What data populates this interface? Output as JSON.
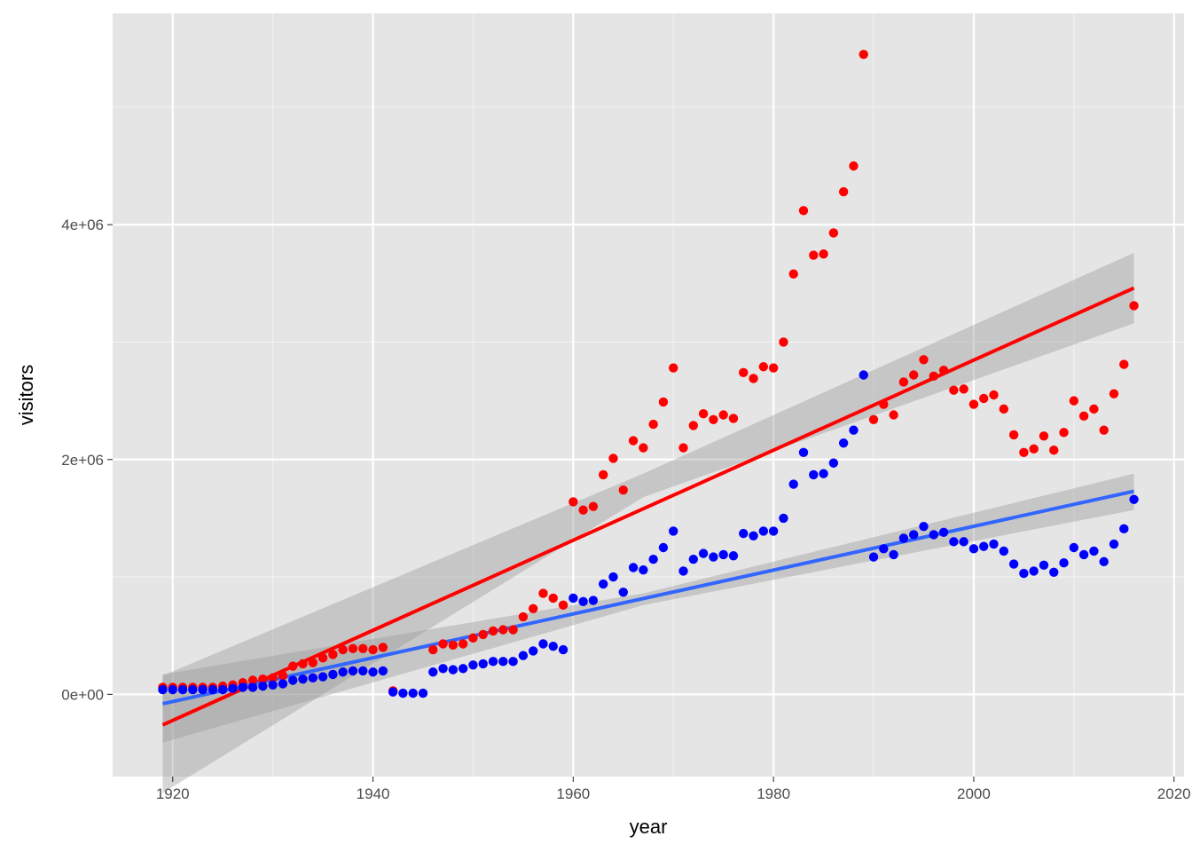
{
  "chart_data": {
    "type": "scatter",
    "xlabel": "year",
    "ylabel": "visitors",
    "xlim": [
      1914,
      2021
    ],
    "ylim": [
      -700000,
      5800000
    ],
    "x_ticks": [
      1920,
      1940,
      1960,
      1980,
      2000,
      2020
    ],
    "x_tick_labels": [
      "1920",
      "1940",
      "1960",
      "1980",
      "2000",
      "2020"
    ],
    "y_ticks": [
      0,
      2000000,
      4000000
    ],
    "y_tick_labels": [
      "0e+00",
      "2e+06",
      "4e+06"
    ],
    "grid": true,
    "background": "#e5e5e5",
    "series": [
      {
        "color": "#ff0000",
        "trend_color": "#ff0000",
        "trend": {
          "x": [
            1919,
            2016
          ],
          "y": [
            -260000,
            3460000
          ]
        },
        "band": {
          "x": [
            1919,
            1967,
            2016
          ],
          "lower": [
            -840000,
            1680000,
            3160000
          ],
          "upper": [
            160000,
            1880000,
            3760000
          ]
        },
        "points": [
          [
            1919,
            60000
          ],
          [
            1920,
            60000
          ],
          [
            1921,
            60000
          ],
          [
            1922,
            60000
          ],
          [
            1923,
            60000
          ],
          [
            1924,
            60000
          ],
          [
            1925,
            70000
          ],
          [
            1926,
            80000
          ],
          [
            1927,
            100000
          ],
          [
            1928,
            120000
          ],
          [
            1929,
            130000
          ],
          [
            1930,
            140000
          ],
          [
            1931,
            160000
          ],
          [
            1932,
            240000
          ],
          [
            1933,
            260000
          ],
          [
            1934,
            270000
          ],
          [
            1935,
            310000
          ],
          [
            1936,
            340000
          ],
          [
            1937,
            380000
          ],
          [
            1938,
            390000
          ],
          [
            1939,
            390000
          ],
          [
            1940,
            380000
          ],
          [
            1941,
            400000
          ],
          [
            1942,
            30000
          ],
          [
            1946,
            380000
          ],
          [
            1947,
            430000
          ],
          [
            1948,
            420000
          ],
          [
            1949,
            430000
          ],
          [
            1950,
            480000
          ],
          [
            1951,
            510000
          ],
          [
            1952,
            540000
          ],
          [
            1953,
            550000
          ],
          [
            1954,
            550000
          ],
          [
            1955,
            660000
          ],
          [
            1956,
            730000
          ],
          [
            1957,
            860000
          ],
          [
            1958,
            820000
          ],
          [
            1959,
            760000
          ],
          [
            1960,
            1640000
          ],
          [
            1961,
            1570000
          ],
          [
            1962,
            1600000
          ],
          [
            1963,
            1870000
          ],
          [
            1964,
            2010000
          ],
          [
            1965,
            1740000
          ],
          [
            1966,
            2160000
          ],
          [
            1967,
            2100000
          ],
          [
            1968,
            2300000
          ],
          [
            1969,
            2490000
          ],
          [
            1970,
            2780000
          ],
          [
            1971,
            2100000
          ],
          [
            1972,
            2290000
          ],
          [
            1973,
            2390000
          ],
          [
            1974,
            2340000
          ],
          [
            1975,
            2380000
          ],
          [
            1976,
            2350000
          ],
          [
            1977,
            2740000
          ],
          [
            1978,
            2690000
          ],
          [
            1979,
            2790000
          ],
          [
            1980,
            2780000
          ],
          [
            1981,
            3000000
          ],
          [
            1982,
            3580000
          ],
          [
            1983,
            4120000
          ],
          [
            1984,
            3740000
          ],
          [
            1985,
            3750000
          ],
          [
            1986,
            3930000
          ],
          [
            1987,
            4280000
          ],
          [
            1988,
            4500000
          ],
          [
            1989,
            5450000
          ],
          [
            1990,
            2340000
          ],
          [
            1991,
            2470000
          ],
          [
            1992,
            2380000
          ],
          [
            1993,
            2660000
          ],
          [
            1994,
            2720000
          ],
          [
            1995,
            2850000
          ],
          [
            1996,
            2710000
          ],
          [
            1997,
            2760000
          ],
          [
            1998,
            2590000
          ],
          [
            1999,
            2600000
          ],
          [
            2000,
            2470000
          ],
          [
            2001,
            2520000
          ],
          [
            2002,
            2550000
          ],
          [
            2003,
            2430000
          ],
          [
            2004,
            2210000
          ],
          [
            2005,
            2060000
          ],
          [
            2006,
            2090000
          ],
          [
            2007,
            2200000
          ],
          [
            2008,
            2080000
          ],
          [
            2009,
            2230000
          ],
          [
            2010,
            2500000
          ],
          [
            2011,
            2370000
          ],
          [
            2012,
            2430000
          ],
          [
            2013,
            2250000
          ],
          [
            2014,
            2560000
          ],
          [
            2015,
            2810000
          ],
          [
            2016,
            3310000
          ]
        ]
      },
      {
        "color": "#0000ff",
        "trend_color": "#3366ff",
        "trend": {
          "x": [
            1919,
            2016
          ],
          "y": [
            -80000,
            1730000
          ]
        },
        "band": {
          "x": [
            1919,
            1967,
            2016
          ],
          "lower": [
            -410000,
            760000,
            1570000
          ],
          "upper": [
            170000,
            860000,
            1880000
          ]
        },
        "points": [
          [
            1919,
            40000
          ],
          [
            1920,
            40000
          ],
          [
            1921,
            40000
          ],
          [
            1922,
            40000
          ],
          [
            1923,
            40000
          ],
          [
            1924,
            40000
          ],
          [
            1925,
            40000
          ],
          [
            1926,
            50000
          ],
          [
            1927,
            60000
          ],
          [
            1928,
            60000
          ],
          [
            1929,
            70000
          ],
          [
            1930,
            80000
          ],
          [
            1931,
            90000
          ],
          [
            1932,
            120000
          ],
          [
            1933,
            130000
          ],
          [
            1934,
            140000
          ],
          [
            1935,
            150000
          ],
          [
            1936,
            170000
          ],
          [
            1937,
            190000
          ],
          [
            1938,
            200000
          ],
          [
            1939,
            200000
          ],
          [
            1940,
            190000
          ],
          [
            1941,
            200000
          ],
          [
            1942,
            20000
          ],
          [
            1943,
            10000
          ],
          [
            1944,
            10000
          ],
          [
            1945,
            10000
          ],
          [
            1946,
            190000
          ],
          [
            1947,
            220000
          ],
          [
            1948,
            210000
          ],
          [
            1949,
            220000
          ],
          [
            1950,
            250000
          ],
          [
            1951,
            260000
          ],
          [
            1952,
            280000
          ],
          [
            1953,
            280000
          ],
          [
            1954,
            280000
          ],
          [
            1955,
            330000
          ],
          [
            1956,
            370000
          ],
          [
            1957,
            430000
          ],
          [
            1958,
            410000
          ],
          [
            1959,
            380000
          ],
          [
            1960,
            820000
          ],
          [
            1961,
            790000
          ],
          [
            1962,
            800000
          ],
          [
            1963,
            940000
          ],
          [
            1964,
            1000000
          ],
          [
            1965,
            870000
          ],
          [
            1966,
            1080000
          ],
          [
            1967,
            1060000
          ],
          [
            1968,
            1150000
          ],
          [
            1969,
            1250000
          ],
          [
            1970,
            1390000
          ],
          [
            1971,
            1050000
          ],
          [
            1972,
            1150000
          ],
          [
            1973,
            1200000
          ],
          [
            1974,
            1170000
          ],
          [
            1975,
            1190000
          ],
          [
            1976,
            1180000
          ],
          [
            1977,
            1370000
          ],
          [
            1978,
            1350000
          ],
          [
            1979,
            1390000
          ],
          [
            1980,
            1390000
          ],
          [
            1981,
            1500000
          ],
          [
            1982,
            1790000
          ],
          [
            1983,
            2060000
          ],
          [
            1984,
            1870000
          ],
          [
            1985,
            1880000
          ],
          [
            1986,
            1970000
          ],
          [
            1987,
            2140000
          ],
          [
            1988,
            2250000
          ],
          [
            1989,
            2720000
          ],
          [
            1990,
            1170000
          ],
          [
            1991,
            1240000
          ],
          [
            1992,
            1190000
          ],
          [
            1993,
            1330000
          ],
          [
            1994,
            1360000
          ],
          [
            1995,
            1430000
          ],
          [
            1996,
            1360000
          ],
          [
            1997,
            1380000
          ],
          [
            1998,
            1300000
          ],
          [
            1999,
            1300000
          ],
          [
            2000,
            1240000
          ],
          [
            2001,
            1260000
          ],
          [
            2002,
            1280000
          ],
          [
            2003,
            1220000
          ],
          [
            2004,
            1110000
          ],
          [
            2005,
            1030000
          ],
          [
            2006,
            1050000
          ],
          [
            2007,
            1100000
          ],
          [
            2008,
            1040000
          ],
          [
            2009,
            1120000
          ],
          [
            2010,
            1250000
          ],
          [
            2011,
            1190000
          ],
          [
            2012,
            1220000
          ],
          [
            2013,
            1130000
          ],
          [
            2014,
            1280000
          ],
          [
            2015,
            1410000
          ],
          [
            2016,
            1660000
          ]
        ]
      }
    ]
  }
}
